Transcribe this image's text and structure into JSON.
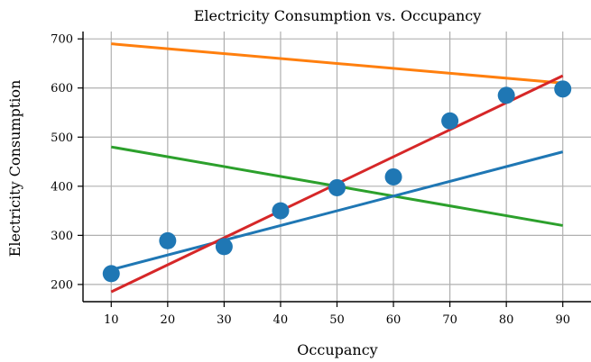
{
  "chart_data": {
    "type": "scatter",
    "title": "Electricity Consumption vs. Occupancy",
    "xlabel": "Occupancy",
    "ylabel": "Electricity Consumption",
    "xlim": [
      5,
      95
    ],
    "ylim": [
      165,
      715
    ],
    "xticks": [
      10,
      20,
      30,
      40,
      50,
      60,
      70,
      80,
      90
    ],
    "yticks": [
      200,
      300,
      400,
      500,
      600,
      700
    ],
    "grid": true,
    "points": {
      "color": "#1f77b4",
      "x": [
        10,
        20,
        30,
        40,
        50,
        60,
        70,
        80,
        90
      ],
      "y": [
        222,
        289,
        277,
        350,
        397,
        419,
        533,
        585,
        598
      ]
    },
    "lines": [
      {
        "color": "#ff7f0e",
        "x": [
          10,
          90
        ],
        "y": [
          690,
          610
        ]
      },
      {
        "color": "#2ca02c",
        "x": [
          10,
          90
        ],
        "y": [
          480,
          320
        ]
      },
      {
        "color": "#1f77b4",
        "x": [
          10,
          90
        ],
        "y": [
          230,
          470
        ]
      },
      {
        "color": "#d62728",
        "x": [
          10,
          90
        ],
        "y": [
          185,
          625
        ]
      }
    ]
  }
}
